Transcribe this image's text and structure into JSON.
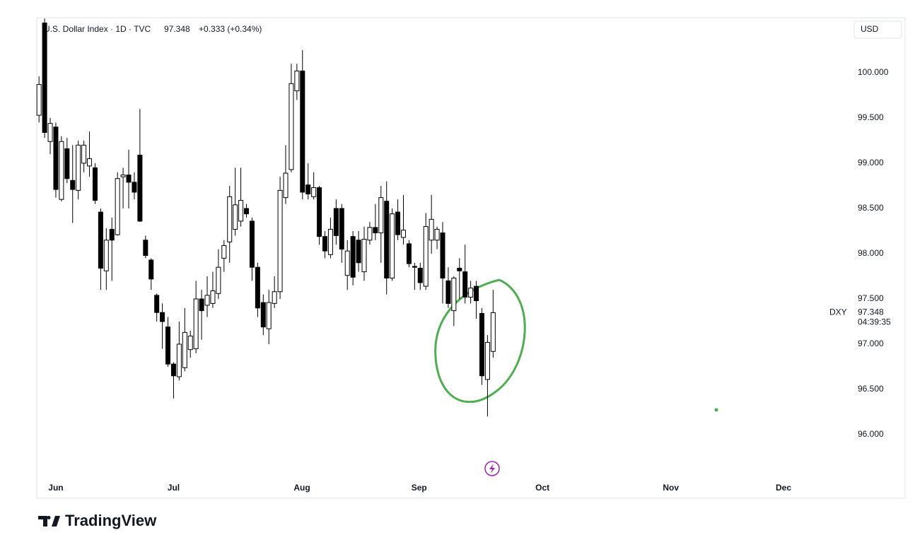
{
  "header": {
    "title": "U.S. Dollar Index · 1D · TVC",
    "price": "97.348",
    "change": "+0.333 (+0.34%)",
    "currency": "USD"
  },
  "chart_data": {
    "type": "candlestick",
    "open": [
      99.53,
      100.55,
      99.24,
      99.4,
      98.6,
      99.16,
      98.81,
      98.7,
      99.0,
      98.97,
      98.95,
      98.46,
      97.81,
      98.27,
      98.21,
      98.85,
      98.87,
      98.79,
      99.09,
      98.15,
      97.93,
      97.54,
      97.35,
      97.19,
      96.78,
      96.64,
      96.74,
      96.94,
      96.95,
      97.5,
      97.43,
      97.45,
      97.56,
      97.95,
      98.13,
      98.27,
      98.36,
      98.5,
      98.36,
      97.85,
      97.46,
      97.17,
      97.45,
      97.58,
      98.62,
      98.93,
      99.8,
      100.02,
      98.76,
      98.63,
      98.73,
      98.19,
      97.99,
      98.5,
      98.5,
      97.76,
      98.19,
      98.15,
      97.8,
      98.15,
      98.29,
      98.23,
      98.58,
      97.73,
      98.46,
      98.18,
      98.11,
      97.86,
      97.84,
      97.64,
      98.15,
      98.15,
      98.23,
      97.7,
      97.37,
      97.84,
      97.8,
      97.52,
      97.64,
      97.34,
      96.61,
      96.92
    ],
    "high": [
      99.96,
      100.6,
      99.5,
      99.45,
      99.3,
      99.28,
      99.2,
      99.25,
      99.25,
      99.35,
      99.0,
      98.5,
      98.28,
      98.4,
      98.9,
      98.95,
      99.15,
      98.9,
      99.6,
      98.2,
      97.95,
      97.56,
      97.45,
      97.3,
      96.8,
      97.25,
      97.4,
      97.15,
      97.7,
      97.6,
      97.75,
      97.8,
      98.05,
      98.15,
      98.75,
      98.95,
      98.95,
      98.55,
      98.4,
      97.9,
      97.55,
      97.6,
      97.75,
      98.85,
      99.2,
      100.1,
      100.1,
      100.25,
      99.0,
      98.9,
      98.75,
      98.25,
      98.4,
      98.6,
      98.55,
      98.15,
      98.25,
      98.25,
      98.3,
      98.35,
      98.55,
      98.75,
      98.8,
      98.5,
      98.6,
      98.65,
      98.15,
      97.9,
      97.9,
      98.45,
      98.65,
      98.3,
      98.35,
      97.85,
      97.75,
      97.95,
      98.1,
      97.7,
      97.7,
      97.4,
      97.1,
      97.6
    ],
    "low": [
      99.45,
      99.28,
      99.1,
      98.62,
      98.58,
      98.78,
      98.34,
      98.6,
      98.9,
      98.85,
      98.55,
      97.6,
      97.6,
      97.7,
      98.2,
      98.5,
      98.5,
      98.6,
      98.35,
      97.95,
      97.6,
      97.25,
      96.95,
      96.75,
      96.4,
      96.6,
      96.7,
      96.85,
      96.9,
      97.05,
      97.3,
      97.4,
      97.5,
      97.8,
      97.9,
      98.2,
      98.3,
      98.4,
      97.7,
      97.3,
      97.1,
      97.0,
      97.4,
      97.5,
      98.55,
      98.9,
      99.7,
      98.6,
      98.6,
      98.6,
      98.1,
      97.95,
      97.95,
      98.1,
      97.9,
      97.6,
      97.65,
      97.8,
      97.7,
      98.1,
      98.15,
      97.9,
      97.55,
      97.7,
      98.15,
      98.1,
      97.85,
      97.6,
      97.6,
      97.6,
      98.0,
      98.05,
      97.45,
      97.4,
      97.2,
      97.5,
      97.45,
      97.45,
      97.28,
      96.55,
      96.2,
      96.85
    ],
    "close": [
      99.87,
      99.34,
      99.44,
      98.71,
      99.24,
      98.83,
      98.71,
      99.2,
      99.2,
      99.05,
      98.59,
      97.84,
      98.15,
      98.15,
      98.83,
      98.87,
      98.79,
      98.68,
      98.36,
      97.98,
      97.72,
      97.35,
      97.25,
      96.78,
      96.65,
      97.0,
      97.13,
      97.09,
      97.5,
      97.37,
      97.54,
      97.59,
      97.85,
      98.09,
      98.63,
      98.54,
      98.59,
      98.44,
      97.85,
      97.4,
      97.19,
      97.46,
      97.58,
      98.7,
      98.89,
      99.88,
      100.02,
      98.68,
      98.66,
      98.73,
      98.19,
      98.03,
      98.27,
      98.2,
      98.05,
      98.03,
      97.74,
      97.9,
      98.16,
      98.29,
      98.23,
      98.62,
      97.73,
      98.44,
      98.21,
      98.26,
      97.89,
      97.85,
      97.68,
      98.3,
      98.38,
      98.27,
      97.73,
      97.45,
      97.73,
      97.81,
      97.52,
      97.62,
      97.48,
      96.65,
      97.02,
      97.348
    ],
    "up_color": "#ffffff",
    "down_color": "#000000",
    "border_color": "#000000",
    "ylim": [
      95.297,
      100.609
    ],
    "yticks": [
      {
        "value": 96,
        "label": "96.000"
      },
      {
        "value": 96.5,
        "label": "96.500"
      },
      {
        "value": 97,
        "label": "97.000"
      },
      {
        "value": 97.5,
        "label": "97.500"
      },
      {
        "value": 98,
        "label": "98.000"
      },
      {
        "value": 98.5,
        "label": "98.500"
      },
      {
        "value": 99,
        "label": "99.000"
      },
      {
        "value": 99.5,
        "label": "99.500"
      },
      {
        "value": 100,
        "label": "100.000"
      }
    ],
    "xlim": [
      -0.4,
      144.4
    ],
    "xticks": [
      {
        "value": 3,
        "label": "Jun"
      },
      {
        "value": 24,
        "label": "Jul"
      },
      {
        "value": 46.9,
        "label": "Aug"
      },
      {
        "value": 67.8,
        "label": "Sep"
      },
      {
        "value": 89.8,
        "label": "Oct"
      },
      {
        "value": 112.7,
        "label": "Nov"
      },
      {
        "value": 132.8,
        "label": "Dec"
      }
    ],
    "symbol": "DXY",
    "last_price": 97.348,
    "countdown": "04:39:35"
  },
  "footer": {
    "brand": "TradingView"
  }
}
